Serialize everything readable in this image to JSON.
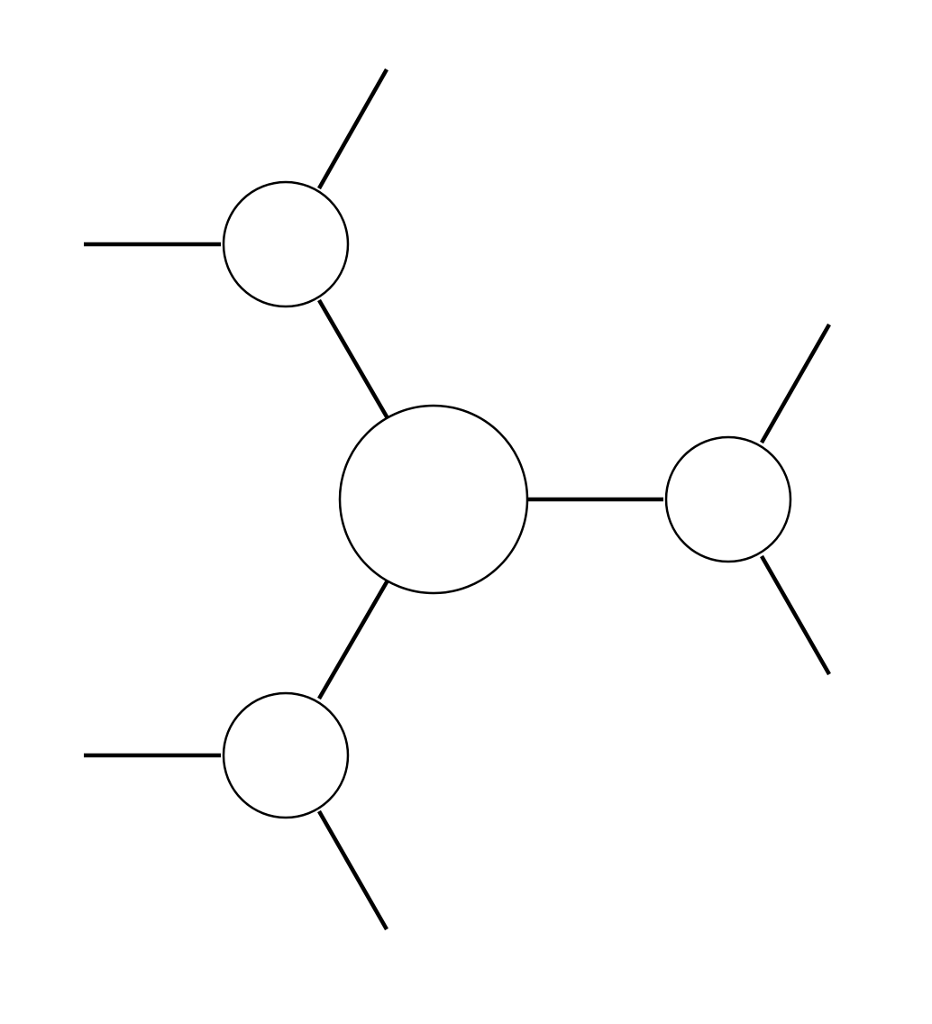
{
  "diagram": {
    "type": "tree-graph",
    "background": "#ffffff",
    "stroke_color": "#000000",
    "node_fill": "#ffffff",
    "nodes": [
      {
        "id": "center",
        "role": "central-node"
      },
      {
        "id": "upper-left",
        "role": "branch-node"
      },
      {
        "id": "right",
        "role": "branch-node"
      },
      {
        "id": "lower-left",
        "role": "branch-node"
      }
    ],
    "edges": [
      {
        "from": "center",
        "to": "upper-left"
      },
      {
        "from": "center",
        "to": "right"
      },
      {
        "from": "center",
        "to": "lower-left"
      },
      {
        "from": "upper-left",
        "to": "open-end"
      },
      {
        "from": "upper-left",
        "to": "open-end"
      },
      {
        "from": "right",
        "to": "open-end"
      },
      {
        "from": "right",
        "to": "open-end"
      },
      {
        "from": "lower-left",
        "to": "open-end"
      },
      {
        "from": "lower-left",
        "to": "open-end"
      }
    ]
  }
}
